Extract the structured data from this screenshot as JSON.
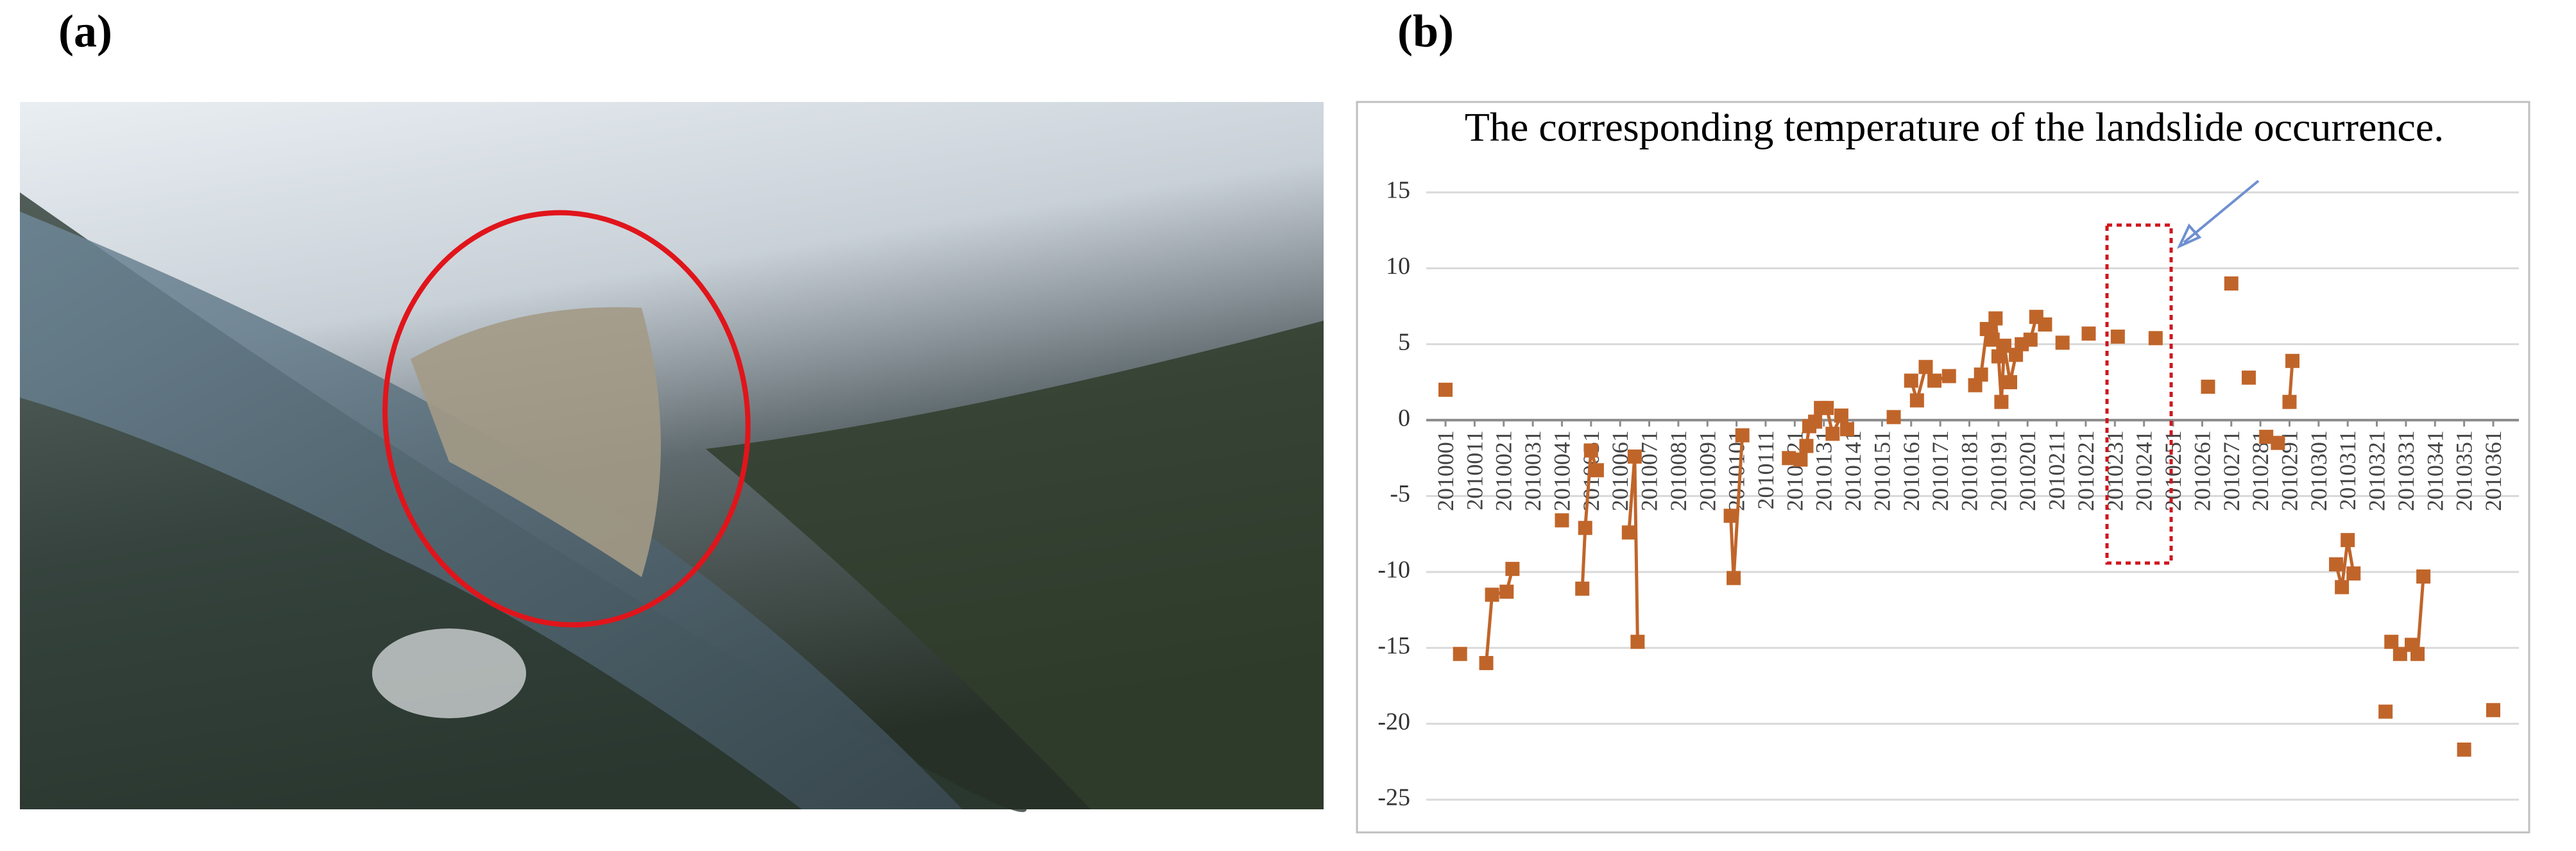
{
  "panel_labels": [
    "(a)",
    "(b)"
  ],
  "chart_data": {
    "type": "scatter-line",
    "title": "The corresponding temperature of the landslide occurrence.",
    "color": "#c0652a",
    "grid": true,
    "xlim": [
      1,
      361
    ],
    "ylim": [
      -25,
      15
    ],
    "yticks": [
      -25,
      -20,
      -15,
      -10,
      -5,
      0,
      5,
      10,
      15
    ],
    "xticks": [
      {
        "value": 1,
        "label": "2010001"
      },
      {
        "value": 11,
        "label": "2010011"
      },
      {
        "value": 21,
        "label": "2010021"
      },
      {
        "value": 31,
        "label": "2010031"
      },
      {
        "value": 41,
        "label": "2010041"
      },
      {
        "value": 51,
        "label": "2010051"
      },
      {
        "value": 61,
        "label": "2010061"
      },
      {
        "value": 71,
        "label": "2010071"
      },
      {
        "value": 81,
        "label": "2010081"
      },
      {
        "value": 91,
        "label": "2010091"
      },
      {
        "value": 101,
        "label": "2010101"
      },
      {
        "value": 111,
        "label": "2010111"
      },
      {
        "value": 121,
        "label": "2010121"
      },
      {
        "value": 131,
        "label": "2010131"
      },
      {
        "value": 141,
        "label": "2010141"
      },
      {
        "value": 151,
        "label": "2010151"
      },
      {
        "value": 161,
        "label": "2010161"
      },
      {
        "value": 171,
        "label": "2010171"
      },
      {
        "value": 181,
        "label": "2010181"
      },
      {
        "value": 191,
        "label": "2010191"
      },
      {
        "value": 201,
        "label": "2010201"
      },
      {
        "value": 211,
        "label": "2010211"
      },
      {
        "value": 221,
        "label": "2010221"
      },
      {
        "value": 231,
        "label": "2010231"
      },
      {
        "value": 241,
        "label": "2010241"
      },
      {
        "value": 251,
        "label": "2010251"
      },
      {
        "value": 261,
        "label": "2010261"
      },
      {
        "value": 271,
        "label": "2010271"
      },
      {
        "value": 281,
        "label": "2010281"
      },
      {
        "value": 291,
        "label": "2010291"
      },
      {
        "value": 301,
        "label": "2010301"
      },
      {
        "value": 311,
        "label": "2010311"
      },
      {
        "value": 321,
        "label": "2010321"
      },
      {
        "value": 331,
        "label": "2010331"
      },
      {
        "value": 341,
        "label": "2010341"
      },
      {
        "value": 351,
        "label": "2010351"
      },
      {
        "value": 361,
        "label": "2010361"
      }
    ],
    "x": [
      1,
      null,
      6,
      null,
      15,
      17,
      22,
      24,
      null,
      41,
      null,
      48,
      49,
      51,
      53,
      null,
      64,
      66,
      67,
      null,
      99,
      100,
      103,
      null,
      119,
      123,
      125,
      126,
      128,
      130,
      132,
      134,
      137,
      139,
      null,
      155,
      null,
      161,
      163,
      166,
      169,
      174,
      null,
      183,
      185,
      187,
      189,
      190,
      191,
      192,
      193,
      195,
      197,
      199,
      202,
      204,
      207,
      null,
      213,
      null,
      222,
      null,
      232,
      null,
      245,
      null,
      263,
      null,
      271,
      null,
      277,
      null,
      283,
      null,
      287,
      null,
      291,
      292,
      null,
      307,
      309,
      311,
      313,
      null,
      324,
      null,
      326,
      null,
      329,
      null,
      333,
      335,
      337,
      null,
      351,
      null,
      361
    ],
    "values": [
      2.0,
      null,
      -15.4,
      null,
      -16,
      -11.5,
      -11.3,
      -9.8,
      null,
      -6.6,
      null,
      -11.1,
      -7.1,
      -2,
      -3.3,
      null,
      -7.4,
      -2.4,
      -14.6,
      null,
      -6.3,
      -10.4,
      -1,
      null,
      -2.5,
      -2.6,
      -1.7,
      -0.4,
      -0.1,
      0.8,
      0.8,
      -0.9,
      0.3,
      -0.6,
      null,
      0.2,
      null,
      2.6,
      1.3,
      3.5,
      2.6,
      2.9,
      null,
      2.3,
      3,
      6,
      5.3,
      6.7,
      4.2,
      1.2,
      4.9,
      2.5,
      4.3,
      5,
      5.3,
      6.8,
      6.3,
      null,
      5.1,
      null,
      5.7,
      null,
      5.5,
      null,
      5.4,
      null,
      2.2,
      null,
      9,
      null,
      2.8,
      null,
      -1.1,
      null,
      -1.5,
      null,
      1.2,
      3.9,
      null,
      -9.5,
      -11,
      -7.9,
      -10.1,
      null,
      -19.2,
      null,
      -14.6,
      null,
      -15.4,
      null,
      -14.8,
      -15.4,
      -10.3,
      null,
      -21.7,
      null,
      -19.1
    ]
  }
}
